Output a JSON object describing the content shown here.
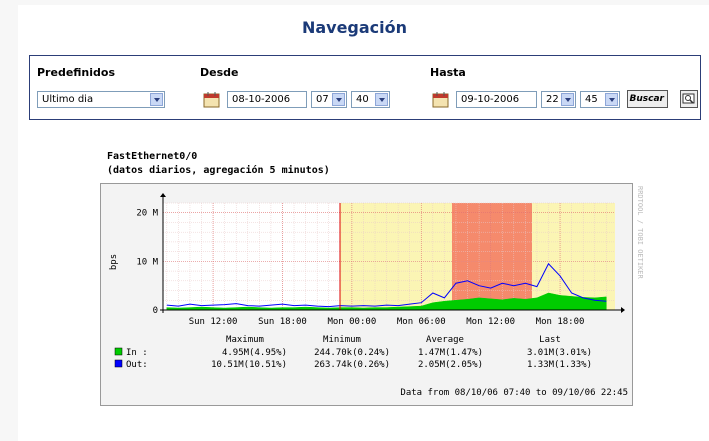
{
  "header": {
    "title": "Navegación"
  },
  "form": {
    "preset_label": "Predefinidos",
    "preset_value": "Ultimo dia",
    "from_label": "Desde",
    "from_date": "08-10-2006",
    "from_hour": "07",
    "from_minute": "40",
    "to_label": "Hasta",
    "to_date": "09-10-2006",
    "to_hour": "22",
    "to_minute": "45",
    "search_button": "Buscar"
  },
  "chart_data": {
    "type": "line",
    "title": "FastEthernet0/0",
    "subtitle": "(datos diarios, agregación 5 minutos)",
    "ylabel": "bps",
    "x": [
      8,
      9,
      10,
      11,
      12,
      13,
      14,
      15,
      16,
      17,
      18,
      19,
      20,
      21,
      22,
      23,
      24,
      25,
      26,
      27,
      28,
      29,
      30,
      31,
      32,
      33,
      34,
      35,
      36,
      37,
      38,
      39,
      40,
      41,
      42,
      43,
      44,
      45,
      46
    ],
    "xlim": [
      7.67,
      46.75
    ],
    "xticks": [
      {
        "value": 12,
        "label": "Sun 12:00"
      },
      {
        "value": 18,
        "label": "Sun 18:00"
      },
      {
        "value": 24,
        "label": "Mon 00:00"
      },
      {
        "value": 30,
        "label": "Mon 06:00"
      },
      {
        "value": 36,
        "label": "Mon 12:00"
      },
      {
        "value": 42,
        "label": "Mon 18:00"
      }
    ],
    "ylim": [
      0,
      22
    ],
    "yticks": [
      0,
      {
        "value": 10,
        "label": "10 M"
      },
      {
        "value": 20,
        "label": "20 M"
      }
    ],
    "grid": true,
    "series": [
      {
        "name": "In :",
        "color": "#00cc00",
        "style": "area",
        "values": [
          0.5,
          0.4,
          0.5,
          0.6,
          0.5,
          0.4,
          0.5,
          0.6,
          0.5,
          0.4,
          0.5,
          0.5,
          0.6,
          0.5,
          0.4,
          0.5,
          0.5,
          0.4,
          0.5,
          0.5,
          0.6,
          0.7,
          0.8,
          1.5,
          1.8,
          2.0,
          2.2,
          2.5,
          2.3,
          2.1,
          2.4,
          2.2,
          2.5,
          3.5,
          3.0,
          2.8,
          2.6,
          2.5,
          2.7
        ]
      },
      {
        "name": "Out:",
        "color": "#0000ff",
        "style": "line",
        "values": [
          1.0,
          0.8,
          1.2,
          0.9,
          1.0,
          1.1,
          1.3,
          0.9,
          0.8,
          1.0,
          1.2,
          0.9,
          1.0,
          0.8,
          0.7,
          0.9,
          0.8,
          0.9,
          0.8,
          1.0,
          0.9,
          1.2,
          1.5,
          3.5,
          2.5,
          5.5,
          6.0,
          5.0,
          4.5,
          5.5,
          5.0,
          5.5,
          4.8,
          9.5,
          7.0,
          3.5,
          2.5,
          2.0,
          1.8
        ]
      }
    ],
    "legend": {
      "headers": [
        "Maximum",
        "Minimum",
        "Average",
        "Last"
      ],
      "rows": [
        [
          "4.95M(4.95%)",
          "244.70k(0.24%)",
          "1.47M(1.47%)",
          "3.01M(3.01%)"
        ],
        [
          "10.51M(10.51%)",
          "263.74k(0.26%)",
          "2.05M(2.05%)",
          "1.33M(1.33%)"
        ]
      ]
    },
    "footer": "Data from 08/10/06 07:40 to 09/10/06 22:45",
    "watermark": "RRDTOOL / TOBI OETIKER"
  }
}
